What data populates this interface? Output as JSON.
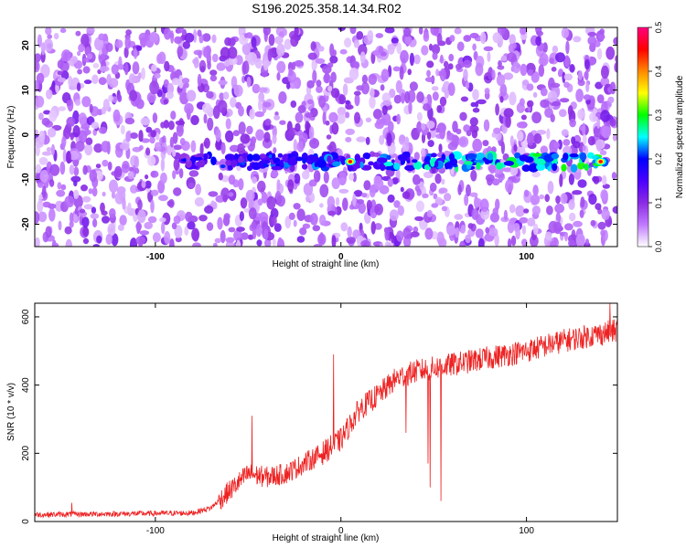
{
  "title": "S196.2025.358.14.34.R02",
  "colors": {
    "series_line": "#ee2222",
    "axis": "#000000",
    "spectrogram_background": "#ffffff"
  },
  "chart_data": [
    {
      "type": "heatmap",
      "xlabel": "Height of straight line (km)",
      "ylabel": "Frequency (Hz)",
      "xlim": [
        -165,
        149
      ],
      "ylim": [
        -25,
        24
      ],
      "x_ticks": [
        -100,
        0,
        100
      ],
      "y_ticks": [
        -20,
        -10,
        0,
        10,
        20
      ],
      "colorbar": {
        "label": "Normalized spectral amplitude",
        "range": [
          0,
          0.5
        ],
        "ticks": [
          0,
          0.1,
          0.2,
          0.3,
          0.4,
          0.5
        ],
        "colormap": [
          "#ffffff",
          "#c07aff",
          "#8a2be2",
          "#4b00ff",
          "#0000ff",
          "#00ffff",
          "#00ff00",
          "#ffff00",
          "#ff8800",
          "#ff0000",
          "#ff007f"
        ]
      },
      "features": {
        "signal_band_frequency_hz": -6,
        "signal_band_x_range": [
          -85,
          145
        ],
        "peak_amplitude": 0.45,
        "peak_x_positions": [
          5,
          140
        ]
      }
    },
    {
      "type": "line",
      "xlabel": "Height of straight line (km)",
      "ylabel": "SNR (10 * v/v)",
      "xlim": [
        -165,
        149
      ],
      "ylim": [
        0,
        640
      ],
      "x_ticks": [
        -100,
        0,
        100
      ],
      "y_ticks": [
        0,
        200,
        400,
        600
      ],
      "series": [
        {
          "trend_x": [
            -165,
            -80,
            -70,
            -60,
            -50,
            -40,
            -30,
            -20,
            -10,
            0,
            10,
            20,
            30,
            40,
            60,
            80,
            100,
            120,
            149
          ],
          "trend_y": [
            20,
            25,
            40,
            90,
            140,
            130,
            140,
            170,
            200,
            240,
            330,
            370,
            420,
            440,
            460,
            480,
            500,
            530,
            560
          ],
          "noise_amplitude": 35,
          "spikes": [
            {
              "x": -48,
              "y": 310
            },
            {
              "x": -4,
              "y": 490
            },
            {
              "x": 48,
              "y": 100
            },
            {
              "x": 47,
              "y": 170
            },
            {
              "x": 35,
              "y": 260
            },
            {
              "x": 54,
              "y": 60
            },
            {
              "x": 145,
              "y": 640
            },
            {
              "x": -145,
              "y": 55
            }
          ]
        }
      ]
    }
  ]
}
